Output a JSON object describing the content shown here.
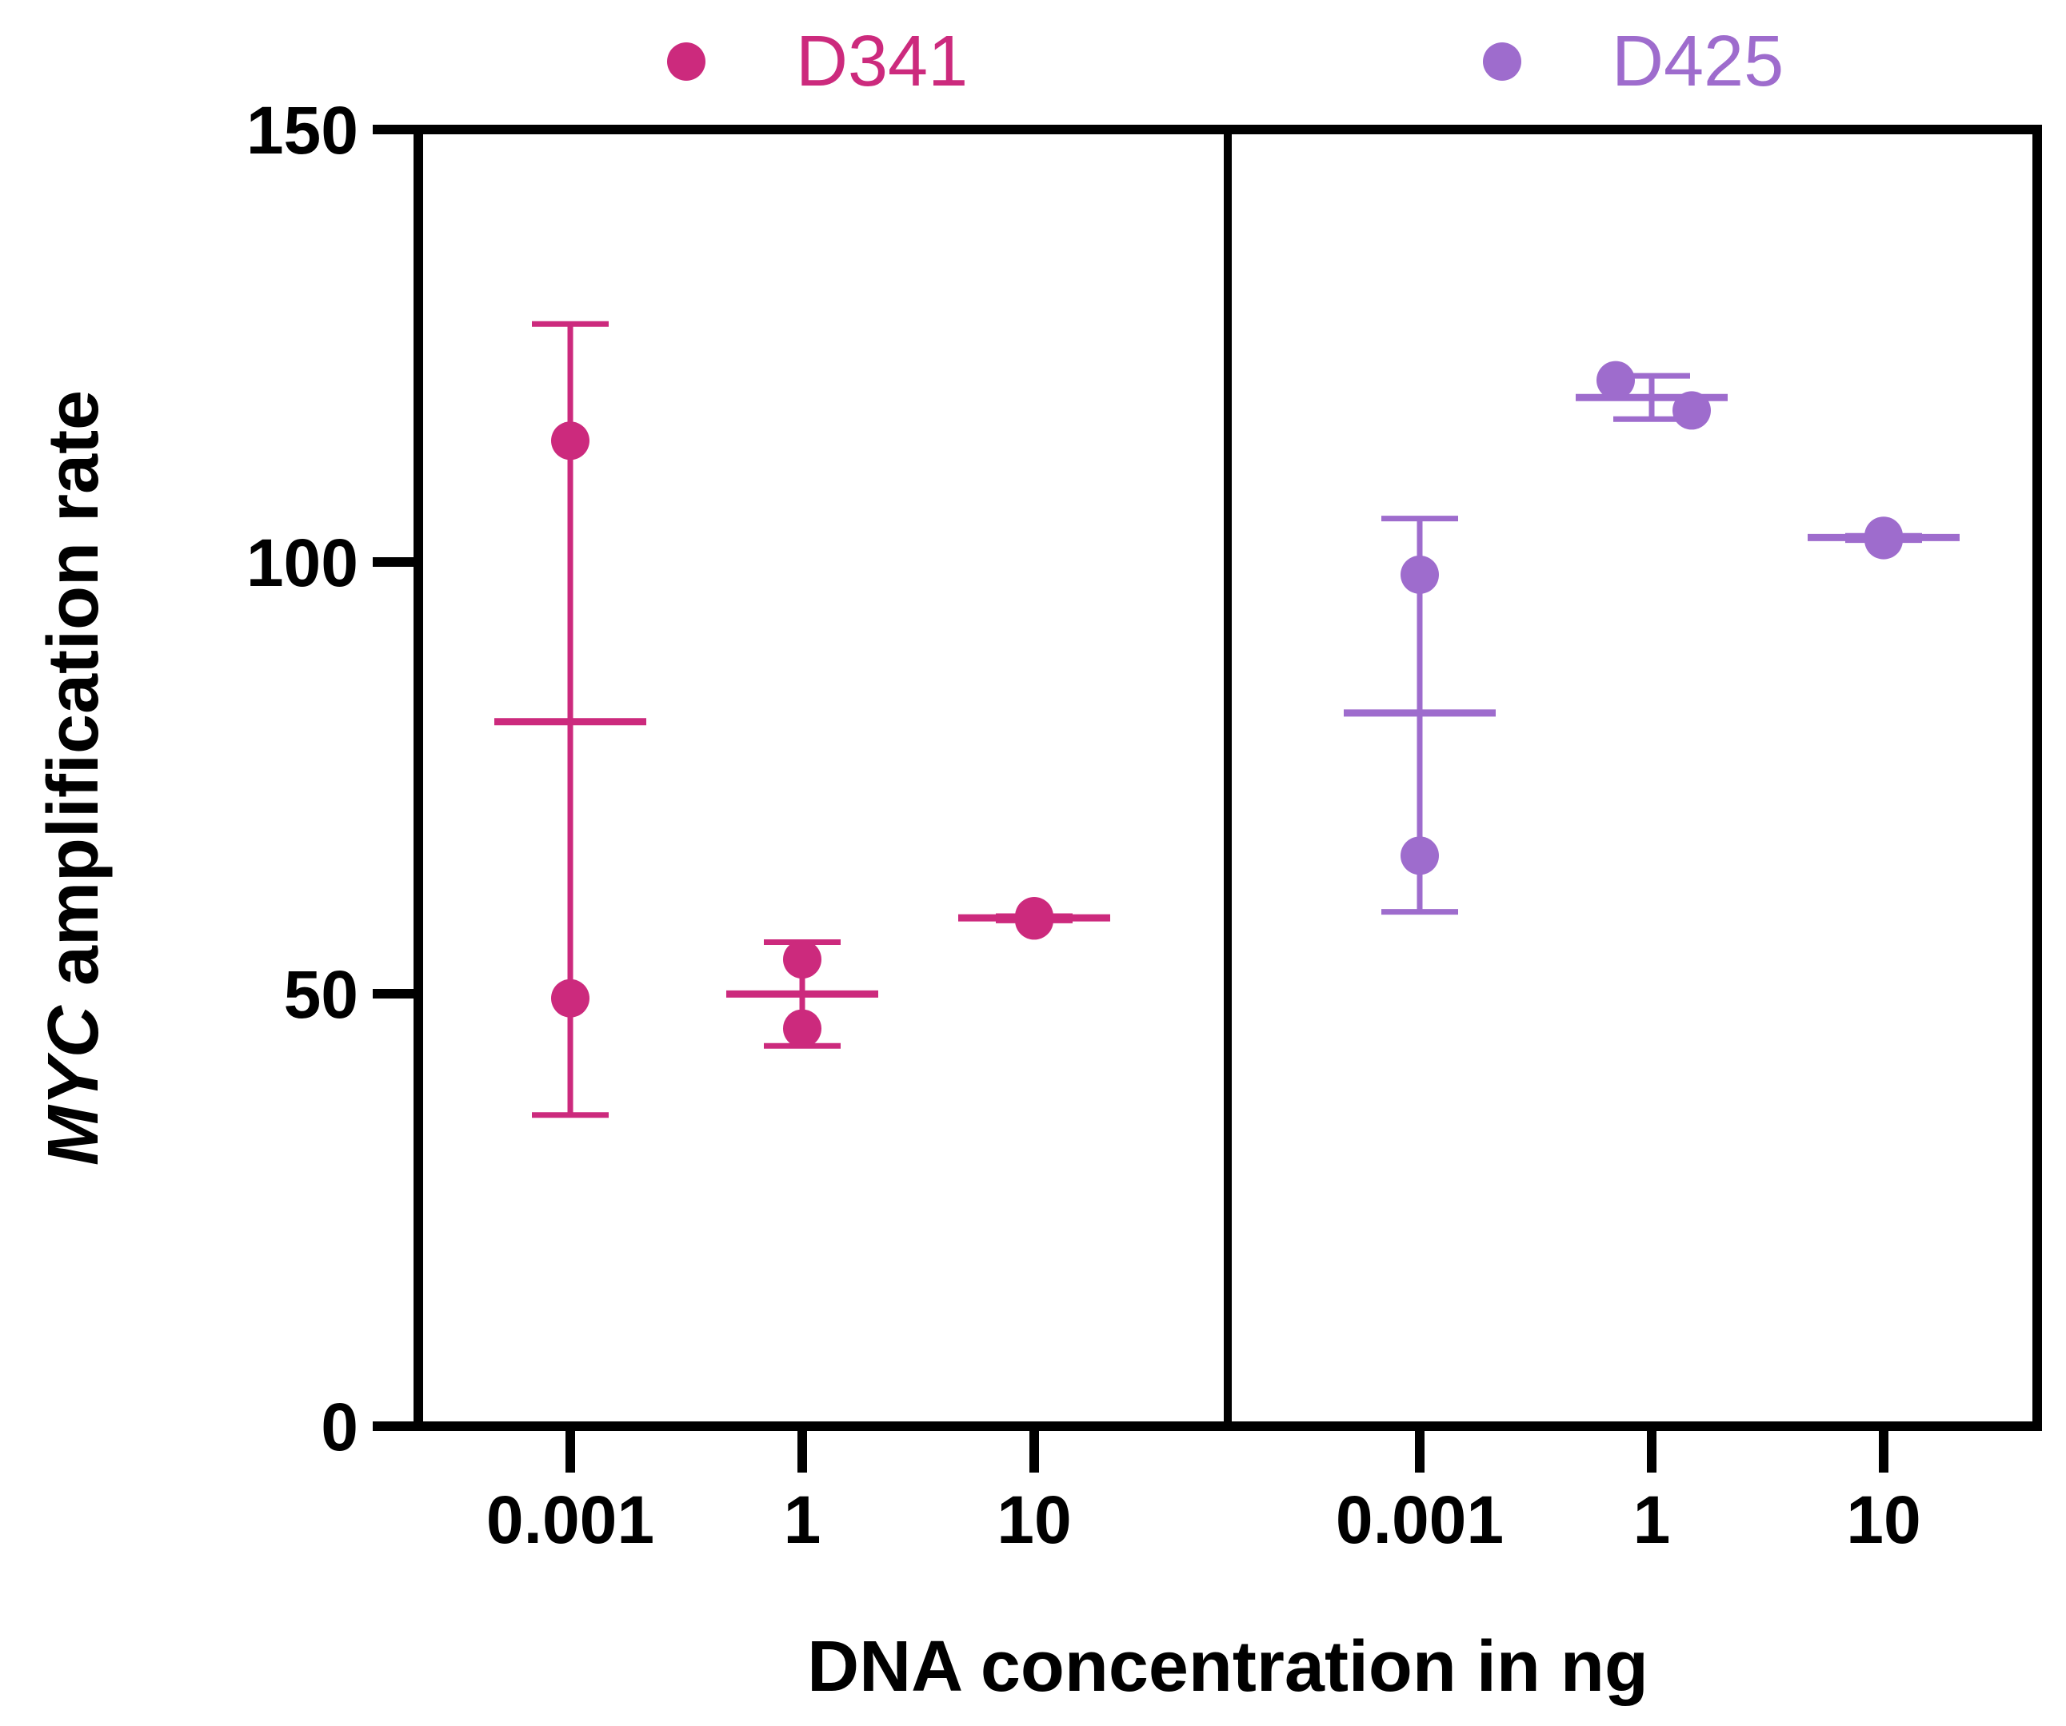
{
  "chart_data": {
    "type": "scatter",
    "ylabel_italic": "MYC",
    "ylabel_rest": " amplification rate",
    "xlabel": "DNA concentration in ng",
    "ylim": [
      0,
      150
    ],
    "yticks": [
      "0",
      "50",
      "100",
      "150"
    ],
    "ytick_values": [
      0,
      50,
      100,
      150
    ],
    "groups": [
      {
        "name": "D341",
        "color": "#CC2A7D",
        "categories": [
          "0.001",
          "1",
          "10"
        ],
        "points": [
          [
            114,
            49.5
          ],
          [
            54,
            46
          ],
          [
            59,
            58.5
          ]
        ],
        "mean": [
          81.5,
          50,
          58.8
        ],
        "err_low": [
          36,
          44,
          58.5
        ],
        "err_high": [
          127.5,
          56,
          59
        ]
      },
      {
        "name": "D425",
        "color": "#9E6CCD",
        "categories": [
          "0.001",
          "1",
          "10"
        ],
        "points": [
          [
            98.5,
            66
          ],
          [
            121,
            117.5
          ],
          [
            103,
            102.5
          ]
        ],
        "mean": [
          82.5,
          119,
          102.8
        ],
        "err_low": [
          59.5,
          116.5,
          102.5
        ],
        "err_high": [
          105,
          121.5,
          103
        ]
      }
    ]
  }
}
